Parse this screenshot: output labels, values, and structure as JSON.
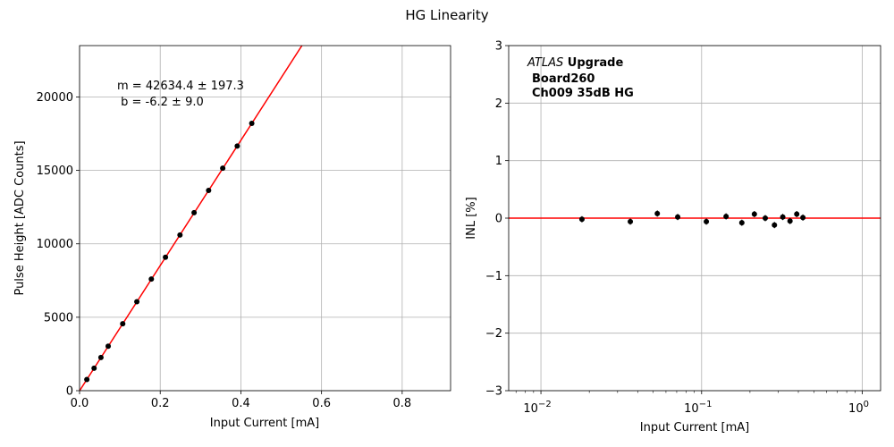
{
  "figure_title": "HG Linearity",
  "colors": {
    "fit": "#ff0000",
    "points": "#000000",
    "grid": "#b0b0b0"
  },
  "chart_data": [
    {
      "type": "scatter",
      "title": "",
      "xlabel": "Input Current [mA]",
      "ylabel": "Pulse Height [ADC Counts]",
      "xlim": [
        0,
        0.92
      ],
      "ylim": [
        0,
        23500
      ],
      "xticks": [
        0,
        0.2,
        0.4,
        0.6,
        0.8
      ],
      "xtick_labels": [
        "0.0",
        "0.2",
        "0.4",
        "0.6",
        "0.8"
      ],
      "yticks": [
        0,
        5000,
        10000,
        15000,
        20000
      ],
      "ytick_labels": [
        "0",
        "5000",
        "10000",
        "15000",
        "20000"
      ],
      "grid": true,
      "fit_label_m": "m = 42634.4 ± 197.3",
      "fit_label_b": " b = -6.2 ± 9.0",
      "fit": {
        "slope": 42634.4,
        "intercept": -6.2
      },
      "series": [
        {
          "x": [
            0.018,
            0.036,
            0.053,
            0.071,
            0.107,
            0.142,
            0.178,
            0.213,
            0.249,
            0.284,
            0.32,
            0.355,
            0.391,
            0.427
          ],
          "y": [
            760,
            1530,
            2260,
            3030,
            4560,
            6060,
            7600,
            9090,
            10600,
            12120,
            13640,
            15150,
            16660,
            18200
          ]
        }
      ]
    },
    {
      "type": "scatter",
      "title": "",
      "xlabel": "Input Current [mA]",
      "ylabel": "INL [%]",
      "xscale": "log",
      "xlim": [
        0.0063,
        1.3
      ],
      "ylim": [
        -3,
        3
      ],
      "xticks": [
        0.01,
        0.1,
        1
      ],
      "xtick_labels": [
        "10",
        "10",
        "10"
      ],
      "xtick_exponents": [
        "−2",
        "−1",
        "0"
      ],
      "yticks": [
        -3,
        -2,
        -1,
        0,
        1,
        2,
        3
      ],
      "ytick_labels": [
        "−3",
        "−2",
        "−1",
        "0",
        "1",
        "2",
        "3"
      ],
      "grid": true,
      "reference_line_y": 0,
      "annotation": {
        "experiment": "ATLAS",
        "line1_rest": " Upgrade",
        "line2": "Board260",
        "line3": "Ch009 35dB HG"
      },
      "series": [
        {
          "x": [
            0.018,
            0.036,
            0.053,
            0.071,
            0.107,
            0.142,
            0.178,
            0.213,
            0.249,
            0.284,
            0.32,
            0.355,
            0.391,
            0.427
          ],
          "y": [
            -0.02,
            -0.06,
            0.08,
            0.02,
            -0.06,
            0.03,
            -0.08,
            0.07,
            0.0,
            -0.12,
            0.02,
            -0.05,
            0.07,
            0.01
          ]
        }
      ]
    }
  ]
}
